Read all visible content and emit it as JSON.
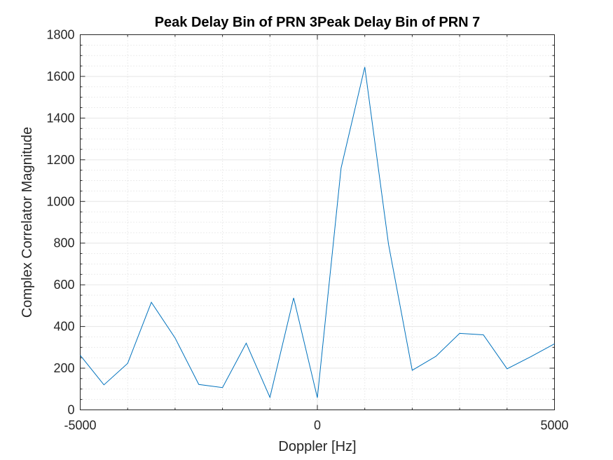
{
  "chart_data": {
    "type": "line",
    "title": "Peak Delay Bin of PRN 3Peak Delay Bin of PRN 7",
    "xlabel": "Doppler [Hz]",
    "ylabel": "Complex Correlator Magnitude",
    "xlim": [
      -5000,
      5000
    ],
    "ylim": [
      0,
      1800
    ],
    "xticks": [
      -5000,
      0,
      5000
    ],
    "xtick_labels": [
      "-5000",
      "0",
      "5000"
    ],
    "yticks": [
      0,
      200,
      400,
      600,
      800,
      1000,
      1200,
      1400,
      1600,
      1800
    ],
    "ytick_labels": [
      "0",
      "200",
      "400",
      "600",
      "800",
      "1000",
      "1200",
      "1400",
      "1600",
      "1800"
    ],
    "grid": true,
    "minor_grid": true,
    "line_color": "#0072BD",
    "series": [
      {
        "x": [
          -5000,
          -4500,
          -4000,
          -3500,
          -3000,
          -2500,
          -2000,
          -1500,
          -1000,
          -500,
          0,
          500,
          1000,
          1500,
          2000,
          2500,
          3000,
          3500,
          4000,
          4500,
          5000
        ],
        "values": [
          262,
          120,
          223,
          516,
          345,
          122,
          107,
          320,
          60,
          537,
          58,
          1160,
          1645,
          795,
          190,
          257,
          367,
          360,
          197,
          255,
          317
        ]
      }
    ]
  }
}
